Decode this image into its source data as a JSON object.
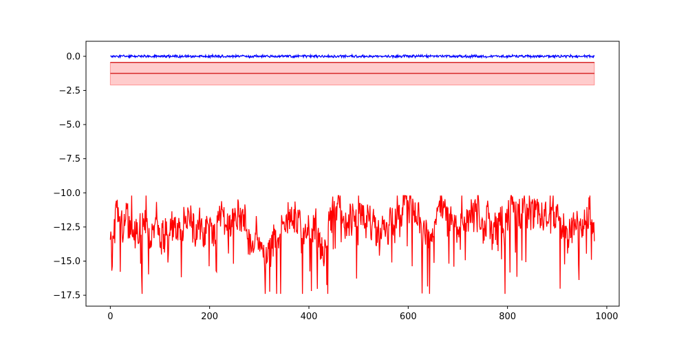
{
  "chart_data": {
    "type": "line",
    "title": "",
    "xlabel": "",
    "ylabel": "",
    "xlim": [
      -49,
      1025
    ],
    "ylim": [
      -18.3,
      1.1
    ],
    "xticks": [
      0,
      200,
      400,
      600,
      800,
      1000
    ],
    "xtick_labels": [
      "0",
      "200",
      "400",
      "600",
      "800",
      "1000"
    ],
    "yticks": [
      0.0,
      -2.5,
      -5.0,
      -7.5,
      -10.0,
      -12.5,
      -15.0,
      -17.5
    ],
    "ytick_labels": [
      "0.0",
      "−2.5",
      "−5.0",
      "−7.5",
      "−10.0",
      "−12.5",
      "−15.0",
      "−17.5"
    ],
    "grid": false,
    "x_range": [
      0,
      975
    ],
    "series": [
      {
        "color": "#0000ff",
        "style": "noisy line",
        "mean": 0.0,
        "min": -0.15,
        "max": 0.12
      },
      {
        "color": "#ff0000",
        "style": "noisy line",
        "mean": -12.2,
        "min": -17.4,
        "max": -10.2
      }
    ],
    "hlines": [
      {
        "y": -0.45,
        "color": "#d62728"
      },
      {
        "y": -1.25,
        "color": "#d62728"
      }
    ],
    "band": {
      "y_low": -2.1,
      "y_high": -0.45,
      "color": "#ff0000",
      "opacity": 0.2
    }
  },
  "colors": {
    "series_blue": "#0000ff",
    "series_red": "#ff0000",
    "hline": "#d62728",
    "axes": "#000000"
  }
}
